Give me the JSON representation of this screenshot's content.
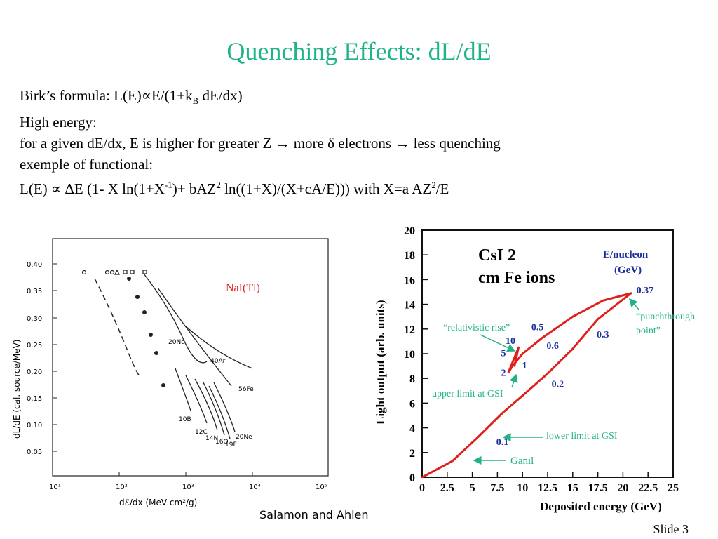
{
  "slide": {
    "title": "Quenching Effects: dL/dE",
    "number": "Slide 3",
    "credit": "Salamon and Ahlen"
  },
  "body": {
    "l1_a": "Birk’s formula:  L(E)",
    "l1_prop": "∝",
    "l1_b": "E/(1+k",
    "l1_sub": "B",
    "l1_c": " dE/dx)",
    "l2": "High energy:",
    "l3_a": "for a given dE/dx,  E is higher for greater Z ",
    "l3_arrow1": "→",
    "l3_b": " more ",
    "l3_delta": "δ",
    "l3_c": " electrons ",
    "l3_arrow2": "→",
    "l3_d": " less quenching",
    "l4": "exemple of functional:",
    "l5_a": "L(E) ",
    "l5_prop": "∝",
    "l5_b": " ΔE (1- X ln(1+X",
    "l5_sup1": "-1",
    "l5_c": ")+ bAZ",
    "l5_sup2": "2",
    "l5_d": " ln((1+X)/(X+cA/E)))  with X=a AZ",
    "l5_sup3": "2",
    "l5_e": "/E"
  },
  "left_plot": {
    "ylabel": "dL/dE (cal. source/MeV)",
    "xlabel": "dℰ/dx (MeV cm²/g)",
    "nai_label": "NaI(Tl)",
    "y_ticks": [
      "0.40",
      "0.35",
      "0.30",
      "0.25",
      "0.20",
      "0.15",
      "0.10",
      "0.05"
    ],
    "x_ticks": [
      "10¹",
      "10²",
      "10³",
      "10⁴",
      "10⁵"
    ],
    "curve_labels": [
      "20Ne",
      "40Ar",
      "56Fe",
      "10B",
      "12C",
      "14N",
      "16O",
      "19F",
      "20Ne"
    ]
  },
  "chart_data": {
    "type": "line",
    "title": "CsI 2 cm Fe ions",
    "xlabel": "Deposited energy (GeV)",
    "ylabel": "Light output (arb. units)",
    "xlim": [
      0,
      25
    ],
    "ylim": [
      0,
      20
    ],
    "x_ticks": [
      "0",
      "2.5",
      "5",
      "7.5",
      "10",
      "12.5",
      "15",
      "17.5",
      "20",
      "22.5",
      "25"
    ],
    "y_ticks": [
      "0",
      "2",
      "4",
      "6",
      "8",
      "10",
      "12",
      "14",
      "16",
      "18",
      "20"
    ],
    "legend_title": "E/nucleon (GeV)",
    "series": [
      {
        "x": [
          0,
          3,
          5.5,
          8,
          10,
          12.5,
          15,
          17.5,
          20.8,
          18,
          15,
          12,
          10,
          9,
          8.6,
          9.6,
          9.2
        ],
        "y": [
          0,
          1.3,
          3.2,
          5.2,
          6.6,
          8.4,
          10.4,
          12.8,
          14.9,
          14.3,
          13.0,
          11.3,
          10.0,
          9.0,
          8.5,
          10.5,
          9.0
        ]
      }
    ],
    "point_labels": [
      {
        "text": "0.1",
        "x": 8,
        "y": 2.6
      },
      {
        "text": "0.2",
        "x": 13.5,
        "y": 7.3
      },
      {
        "text": "0.3",
        "x": 18,
        "y": 11.3
      },
      {
        "text": "0.37",
        "x": 22.2,
        "y": 14.9
      },
      {
        "text": "0.5",
        "x": 11.5,
        "y": 11.9
      },
      {
        "text": "0.6",
        "x": 13,
        "y": 10.4
      },
      {
        "text": "1",
        "x": 10.2,
        "y": 8.8
      },
      {
        "text": "2",
        "x": 8.1,
        "y": 8.2
      },
      {
        "text": "5",
        "x": 8.1,
        "y": 9.8
      },
      {
        "text": "10",
        "x": 8.8,
        "y": 10.8
      }
    ],
    "annotations": {
      "relativistic": "“relativistic rise”",
      "punch1": "“punchthrough",
      "punch2": "point”",
      "upper": "upper limit at GSI",
      "lower": "lower limit at GSI",
      "ganil": "Ganil"
    },
    "colors": {
      "curve": "#e0201a",
      "labels": "#1a2f9a",
      "annotations": "#1fb38a"
    }
  }
}
